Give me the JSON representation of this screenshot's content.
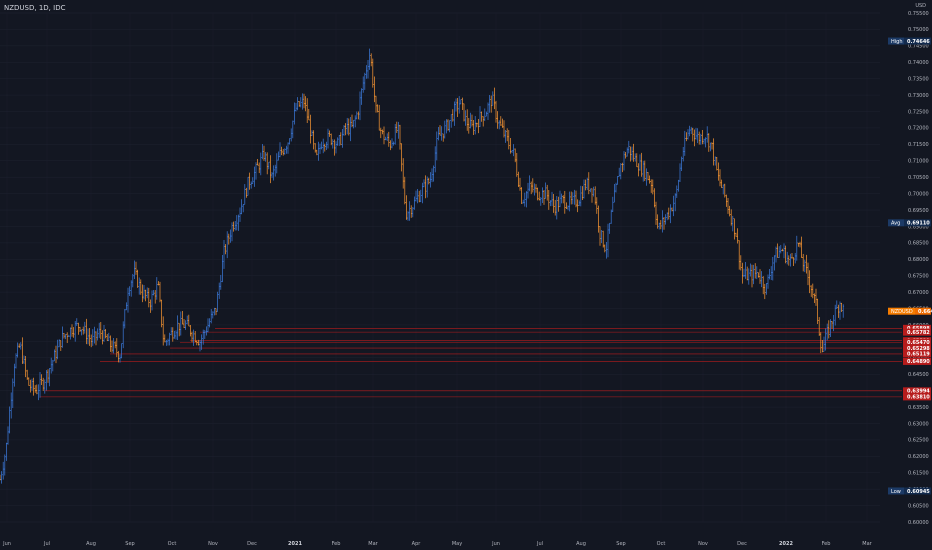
{
  "header": {
    "symbol": "NZDUSD, 1D, IDC",
    "currency": "USD"
  },
  "chart_data": {
    "type": "candlestick",
    "title": "NZDUSD, 1D, IDC",
    "ylim": [
      0.6,
      0.755
    ],
    "y_ticks": [
      "0.75500",
      "0.75000",
      "0.74500",
      "0.74000",
      "0.73500",
      "0.73000",
      "0.72500",
      "0.72000",
      "0.71500",
      "0.71000",
      "0.70500",
      "0.70000",
      "0.69500",
      "0.69000",
      "0.68500",
      "0.68000",
      "0.67500",
      "0.67000",
      "0.66500",
      "0.66000",
      "0.65500",
      "0.65000",
      "0.64500",
      "0.64000",
      "0.63500",
      "0.63000",
      "0.62500",
      "0.62000",
      "0.61500",
      "0.61000",
      "0.60500",
      "0.60000"
    ],
    "x_ticks": [
      "Jun",
      "Jul",
      "Aug",
      "Sep",
      "Oct",
      "Nov",
      "Dec",
      "2021",
      "Feb",
      "Mar",
      "Apr",
      "May",
      "Jun",
      "Jul",
      "Aug",
      "Sep",
      "Oct",
      "Nov",
      "Dec",
      "2022",
      "Feb",
      "Mar"
    ],
    "path": [
      [
        0,
        0.613
      ],
      [
        6,
        0.622
      ],
      [
        14,
        0.648
      ],
      [
        20,
        0.654
      ],
      [
        28,
        0.642
      ],
      [
        36,
        0.64
      ],
      [
        44,
        0.643
      ],
      [
        54,
        0.65
      ],
      [
        62,
        0.656
      ],
      [
        72,
        0.659
      ],
      [
        80,
        0.66
      ],
      [
        92,
        0.655
      ],
      [
        100,
        0.658
      ],
      [
        110,
        0.654
      ],
      [
        120,
        0.651
      ],
      [
        128,
        0.671
      ],
      [
        134,
        0.676
      ],
      [
        142,
        0.67
      ],
      [
        150,
        0.667
      ],
      [
        158,
        0.672
      ],
      [
        164,
        0.654
      ],
      [
        170,
        0.657
      ],
      [
        178,
        0.66
      ],
      [
        186,
        0.66
      ],
      [
        194,
        0.657
      ],
      [
        200,
        0.655
      ],
      [
        208,
        0.66
      ],
      [
        216,
        0.665
      ],
      [
        224,
        0.682
      ],
      [
        232,
        0.69
      ],
      [
        240,
        0.695
      ],
      [
        248,
        0.703
      ],
      [
        256,
        0.707
      ],
      [
        264,
        0.712
      ],
      [
        272,
        0.705
      ],
      [
        280,
        0.712
      ],
      [
        288,
        0.716
      ],
      [
        296,
        0.726
      ],
      [
        304,
        0.728
      ],
      [
        310,
        0.72
      ],
      [
        316,
        0.71
      ],
      [
        322,
        0.716
      ],
      [
        330,
        0.717
      ],
      [
        338,
        0.715
      ],
      [
        346,
        0.72
      ],
      [
        352,
        0.72
      ],
      [
        358,
        0.725
      ],
      [
        364,
        0.735
      ],
      [
        370,
        0.743
      ],
      [
        376,
        0.725
      ],
      [
        382,
        0.718
      ],
      [
        390,
        0.715
      ],
      [
        398,
        0.72
      ],
      [
        406,
        0.694
      ],
      [
        414,
        0.697
      ],
      [
        422,
        0.701
      ],
      [
        430,
        0.704
      ],
      [
        438,
        0.717
      ],
      [
        446,
        0.72
      ],
      [
        454,
        0.725
      ],
      [
        460,
        0.728
      ],
      [
        466,
        0.722
      ],
      [
        472,
        0.72
      ],
      [
        480,
        0.723
      ],
      [
        486,
        0.725
      ],
      [
        492,
        0.729
      ],
      [
        498,
        0.722
      ],
      [
        506,
        0.717
      ],
      [
        514,
        0.712
      ],
      [
        522,
        0.698
      ],
      [
        530,
        0.702
      ],
      [
        538,
        0.7
      ],
      [
        546,
        0.7
      ],
      [
        554,
        0.696
      ],
      [
        562,
        0.698
      ],
      [
        570,
        0.697
      ],
      [
        578,
        0.698
      ],
      [
        586,
        0.703
      ],
      [
        594,
        0.701
      ],
      [
        600,
        0.688
      ],
      [
        606,
        0.683
      ],
      [
        612,
        0.695
      ],
      [
        620,
        0.708
      ],
      [
        628,
        0.714
      ],
      [
        636,
        0.71
      ],
      [
        644,
        0.707
      ],
      [
        652,
        0.703
      ],
      [
        658,
        0.689
      ],
      [
        664,
        0.692
      ],
      [
        670,
        0.695
      ],
      [
        676,
        0.699
      ],
      [
        682,
        0.712
      ],
      [
        690,
        0.72
      ],
      [
        698,
        0.717
      ],
      [
        706,
        0.718
      ],
      [
        712,
        0.714
      ],
      [
        718,
        0.705
      ],
      [
        724,
        0.7
      ],
      [
        730,
        0.694
      ],
      [
        736,
        0.688
      ],
      [
        742,
        0.675
      ],
      [
        750,
        0.675
      ],
      [
        758,
        0.676
      ],
      [
        766,
        0.671
      ],
      [
        774,
        0.681
      ],
      [
        782,
        0.683
      ],
      [
        790,
        0.679
      ],
      [
        798,
        0.685
      ],
      [
        804,
        0.678
      ],
      [
        810,
        0.673
      ],
      [
        816,
        0.666
      ],
      [
        822,
        0.652
      ],
      [
        828,
        0.658
      ],
      [
        834,
        0.663
      ],
      [
        840,
        0.667
      ],
      [
        844,
        0.664
      ]
    ],
    "levels": [
      "0.65898",
      "0.65782",
      "0.65521",
      "0.65470",
      "0.65298",
      "0.65119",
      "0.64890",
      "0.63994",
      "0.63810"
    ],
    "markers": {
      "high": {
        "label": "High",
        "value": "0.74646"
      },
      "avg": {
        "label": "Avg",
        "value": "0.69110"
      },
      "last": {
        "label": "NZDUSD",
        "value": "0.66419"
      },
      "low": {
        "label": "Low",
        "value": "0.60945"
      }
    },
    "colors": {
      "up": "#3d7de0",
      "down": "#ff9a33",
      "level": "#b71c1c",
      "grid": "#1e2230",
      "text": "#b2b5be"
    }
  }
}
